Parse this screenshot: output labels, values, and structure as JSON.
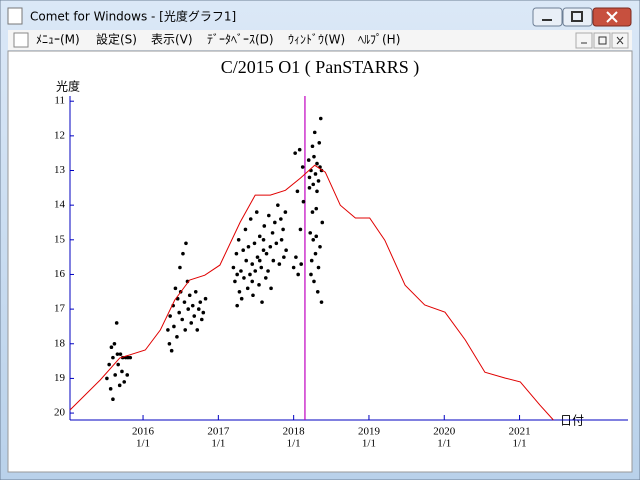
{
  "window": {
    "title": "Comet for Windows - [光度グラフ1]"
  },
  "menu": [
    "ﾒﾆｭｰ(M)",
    "設定(S)",
    "表示(V)",
    "ﾃﾞｰﾀﾍﾞｰｽ(D)",
    "ｳｨﾝﾄﾞｳ(W)",
    "ﾍﾙﾌﾟ(H)"
  ],
  "chart_data": {
    "type": "scatter",
    "title": "C/2015 O1 ( PanSTARRS )",
    "y_label": "光度",
    "x_label": "日付",
    "xlim": [
      2015.03,
      2022.44
    ],
    "ylim": [
      20.2,
      10.85
    ],
    "xticks": [
      {
        "value": 2016,
        "label": "2016",
        "date": "1/1"
      },
      {
        "value": 2017,
        "label": "2017",
        "date": "1/1"
      },
      {
        "value": 2018,
        "label": "2018",
        "date": "1/1"
      },
      {
        "value": 2019,
        "label": "2019",
        "date": "1/1"
      },
      {
        "value": 2020,
        "label": "2020",
        "date": "1/1"
      },
      {
        "value": 2021,
        "label": "2021",
        "date": "1/1"
      }
    ],
    "yticks": [
      11,
      12,
      13,
      14,
      15,
      16,
      17,
      18,
      19,
      20
    ],
    "axis_color": "#0000c0",
    "marker_x": 2018.15,
    "marker_color": "#c000c0",
    "series": [
      {
        "color": "#000000",
        "x": [
          2015.52,
          2015.55,
          2015.57,
          2015.58,
          2015.6,
          2015.6,
          2015.62,
          2015.63,
          2015.65,
          2015.66,
          2015.67,
          2015.69,
          2015.7,
          2015.72,
          2015.73,
          2015.75,
          2015.77,
          2015.79,
          2015.8,
          2015.83,
          2016.33,
          2016.35,
          2016.36,
          2016.38,
          2016.4,
          2016.41,
          2016.43,
          2016.45,
          2016.46,
          2016.48,
          2016.49,
          2016.5,
          2016.52,
          2016.53,
          2016.55,
          2016.56,
          2016.57,
          2016.59,
          2016.6,
          2016.62,
          2016.64,
          2016.66,
          2016.68,
          2016.7,
          2016.72,
          2016.74,
          2016.76,
          2016.78,
          2016.8,
          2016.83,
          2017.2,
          2017.22,
          2017.24,
          2017.25,
          2017.27,
          2017.28,
          2017.3,
          2017.31,
          2017.33,
          2017.34,
          2017.36,
          2017.37,
          2017.39,
          2017.4,
          2017.42,
          2017.43,
          2017.45,
          2017.46,
          2017.48,
          2017.49,
          2017.51,
          2017.52,
          2017.54,
          2017.55,
          2017.57,
          2017.58,
          2017.6,
          2017.61,
          2017.63,
          2017.64,
          2017.66,
          2017.67,
          2017.69,
          2017.7,
          2017.72,
          2017.73,
          2017.75,
          2017.77,
          2017.79,
          2017.81,
          2017.83,
          2017.84,
          2017.86,
          2017.87,
          2017.89,
          2017.9,
          2017.25,
          2017.45,
          2017.6,
          2017.55,
          2018.0,
          2018.02,
          2018.03,
          2018.05,
          2018.06,
          2018.08,
          2018.09,
          2018.1,
          2018.12,
          2018.13,
          2018.2,
          2018.21,
          2018.22,
          2018.23,
          2018.24,
          2018.25,
          2018.26,
          2018.27,
          2018.28,
          2018.29,
          2018.3,
          2018.31,
          2018.32,
          2018.33,
          2018.34,
          2018.35,
          2018.36,
          2018.37,
          2018.37,
          2018.38,
          2018.21,
          2018.23,
          2018.25,
          2018.27,
          2018.29,
          2018.31,
          2018.33,
          2018.35,
          2018.3,
          2018.26
        ],
        "values": [
          19.0,
          18.6,
          19.3,
          18.1,
          18.4,
          19.6,
          18.0,
          18.9,
          17.4,
          18.3,
          18.6,
          19.2,
          18.3,
          18.8,
          18.4,
          19.1,
          18.4,
          18.9,
          18.4,
          18.4,
          17.6,
          18.0,
          17.2,
          18.2,
          16.9,
          17.5,
          16.4,
          17.8,
          16.7,
          17.1,
          15.8,
          16.5,
          17.3,
          15.4,
          16.8,
          17.6,
          15.1,
          16.2,
          17.0,
          16.6,
          17.4,
          16.9,
          17.2,
          16.5,
          17.6,
          17.0,
          16.8,
          17.3,
          17.1,
          16.7,
          15.8,
          16.2,
          15.4,
          16.9,
          15.0,
          16.5,
          15.9,
          16.7,
          15.3,
          16.1,
          14.7,
          15.6,
          16.4,
          15.2,
          16.0,
          14.4,
          15.7,
          16.6,
          15.1,
          15.9,
          14.2,
          15.5,
          16.3,
          14.9,
          15.8,
          16.8,
          15.3,
          14.6,
          16.1,
          15.4,
          15.9,
          14.3,
          15.2,
          16.4,
          14.8,
          15.6,
          14.5,
          15.1,
          14.0,
          15.7,
          14.4,
          15.0,
          14.7,
          15.5,
          14.2,
          15.3,
          16.0,
          16.2,
          15.0,
          15.6,
          15.8,
          12.5,
          15.5,
          13.6,
          16.0,
          12.4,
          14.7,
          15.7,
          12.9,
          13.9,
          12.7,
          13.2,
          14.8,
          13.0,
          15.6,
          12.3,
          13.4,
          16.2,
          11.9,
          13.1,
          14.9,
          12.8,
          16.5,
          13.3,
          12.2,
          15.2,
          11.5,
          13.0,
          16.8,
          14.5,
          13.5,
          16.0,
          14.2,
          12.6,
          15.4,
          13.6,
          15.8,
          12.9,
          14.1,
          15.0
        ]
      },
      {
        "type": "line",
        "color": "#e00000",
        "x": [
          2015.03,
          2015.43,
          2015.69,
          2016.03,
          2016.23,
          2016.42,
          2016.62,
          2016.82,
          2017.02,
          2017.29,
          2017.49,
          2017.69,
          2017.89,
          2018.09,
          2018.28,
          2018.42,
          2018.62,
          2018.82,
          2019.01,
          2019.21,
          2019.48,
          2019.74,
          2020.01,
          2020.28,
          2020.54,
          2020.81,
          2021.01,
          2021.27,
          2021.45
        ],
        "values": [
          19.91,
          19.05,
          18.41,
          18.18,
          17.6,
          16.74,
          16.16,
          16.02,
          15.73,
          14.49,
          13.71,
          13.71,
          13.57,
          13.22,
          12.85,
          13.05,
          14.0,
          14.37,
          14.37,
          15.01,
          16.31,
          16.88,
          17.09,
          17.89,
          18.82,
          18.99,
          19.1,
          19.77,
          20.2
        ]
      }
    ]
  }
}
